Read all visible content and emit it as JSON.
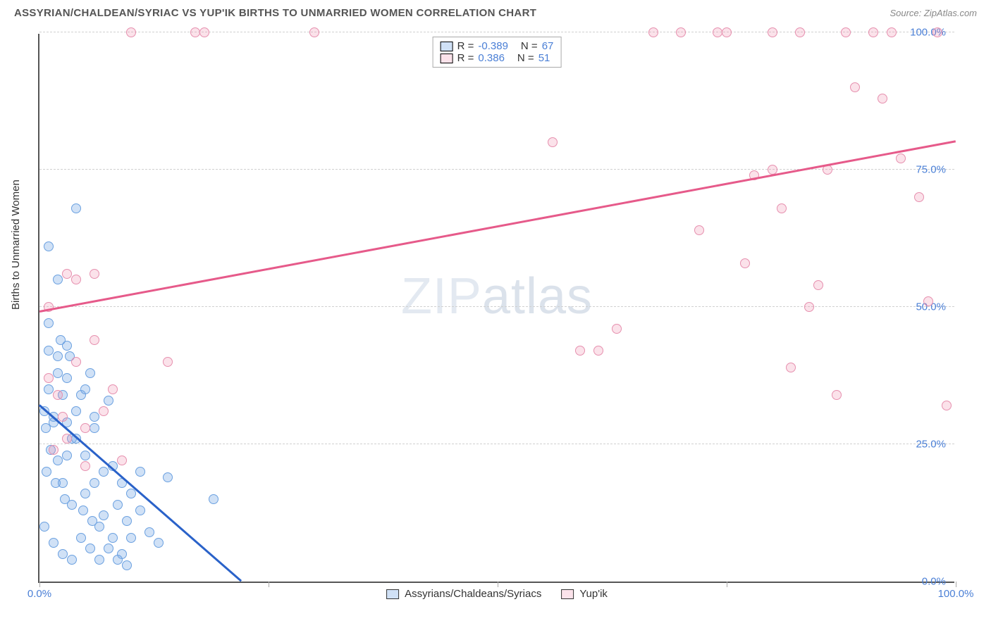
{
  "title": "ASSYRIAN/CHALDEAN/SYRIAC VS YUP'IK BIRTHS TO UNMARRIED WOMEN CORRELATION CHART",
  "source": "Source: ZipAtlas.com",
  "y_axis_label": "Births to Unmarried Women",
  "watermark_bold": "ZIP",
  "watermark_thin": "atlas",
  "chart": {
    "type": "scatter",
    "xlim": [
      0,
      100
    ],
    "ylim": [
      0,
      100
    ],
    "y_ticks": [
      0,
      25,
      50,
      75,
      100
    ],
    "y_tick_labels": [
      "0.0%",
      "25.0%",
      "50.0%",
      "75.0%",
      "100.0%"
    ],
    "x_ticks": [
      0,
      25,
      50,
      75,
      100
    ],
    "x_tick_labels": [
      "0.0%",
      "",
      "",
      "",
      "100.0%"
    ],
    "grid_color": "#d0d0d0",
    "axis_color": "#555555",
    "tick_label_color": "#4a7fd6",
    "marker_radius": 7,
    "series": [
      {
        "name": "Assyrians/Chaldeans/Syriacs",
        "color_fill": "rgba(120,170,230,0.35)",
        "color_stroke": "#6aa0e0",
        "trend_color": "#2a62c9",
        "R": "-0.389",
        "N": "67",
        "trend": {
          "x1": 0,
          "y1": 32,
          "x2": 22,
          "y2": 0
        },
        "points": [
          [
            0.5,
            31
          ],
          [
            0.7,
            28
          ],
          [
            1,
            35
          ],
          [
            1.2,
            24
          ],
          [
            1.5,
            30
          ],
          [
            2,
            41
          ],
          [
            2.5,
            34
          ],
          [
            3,
            37
          ],
          [
            3.5,
            26
          ],
          [
            1,
            47
          ],
          [
            1.5,
            29
          ],
          [
            2,
            22
          ],
          [
            2.5,
            18
          ],
          [
            3,
            23
          ],
          [
            3.5,
            14
          ],
          [
            4,
            31
          ],
          [
            4.5,
            34
          ],
          [
            5,
            16
          ],
          [
            5.5,
            38
          ],
          [
            6,
            18
          ],
          [
            6.5,
            10
          ],
          [
            7,
            20
          ],
          [
            7.5,
            33
          ],
          [
            8,
            8
          ],
          [
            8.5,
            14
          ],
          [
            9,
            18
          ],
          [
            9.5,
            11
          ],
          [
            10,
            16
          ],
          [
            11,
            20
          ],
          [
            12,
            9
          ],
          [
            13,
            7
          ],
          [
            14,
            19
          ],
          [
            4,
            68
          ],
          [
            1,
            61
          ],
          [
            2,
            55
          ],
          [
            3,
            43
          ],
          [
            1,
            42
          ],
          [
            2,
            38
          ],
          [
            3,
            29
          ],
          [
            4,
            26
          ],
          [
            5,
            23
          ],
          [
            6,
            28
          ],
          [
            7,
            12
          ],
          [
            8,
            21
          ],
          [
            9,
            5
          ],
          [
            10,
            8
          ],
          [
            11,
            13
          ],
          [
            2.3,
            44
          ],
          [
            3.3,
            41
          ],
          [
            5,
            35
          ],
          [
            6,
            30
          ],
          [
            0.8,
            20
          ],
          [
            1.8,
            18
          ],
          [
            2.8,
            15
          ],
          [
            19,
            15
          ],
          [
            4.8,
            13
          ],
          [
            5.8,
            11
          ],
          [
            0.5,
            10
          ],
          [
            1.5,
            7
          ],
          [
            2.5,
            5
          ],
          [
            3.5,
            4
          ],
          [
            4.5,
            8
          ],
          [
            5.5,
            6
          ],
          [
            6.5,
            4
          ],
          [
            7.5,
            6
          ],
          [
            8.5,
            4
          ],
          [
            9.5,
            3
          ]
        ]
      },
      {
        "name": "Yup'ik",
        "color_fill": "rgba(240,140,170,0.25)",
        "color_stroke": "#e68fae",
        "trend_color": "#e65a8a",
        "R": "0.386",
        "N": "51",
        "trend": {
          "x1": 0,
          "y1": 49,
          "x2": 100,
          "y2": 80
        },
        "points": [
          [
            1,
            37
          ],
          [
            2,
            34
          ],
          [
            3,
            56
          ],
          [
            4,
            40
          ],
          [
            5,
            28
          ],
          [
            6,
            56
          ],
          [
            1.5,
            24
          ],
          [
            2.5,
            30
          ],
          [
            7,
            31
          ],
          [
            8,
            35
          ],
          [
            9,
            22
          ],
          [
            17,
            100
          ],
          [
            18,
            100
          ],
          [
            30,
            100
          ],
          [
            10,
            100
          ],
          [
            59,
            42
          ],
          [
            61,
            42
          ],
          [
            56,
            80
          ],
          [
            63,
            46
          ],
          [
            67,
            100
          ],
          [
            70,
            100
          ],
          [
            72,
            64
          ],
          [
            74,
            100
          ],
          [
            75,
            100
          ],
          [
            77,
            58
          ],
          [
            78,
            74
          ],
          [
            80,
            75
          ],
          [
            80,
            100
          ],
          [
            81,
            68
          ],
          [
            82,
            39
          ],
          [
            83,
            100
          ],
          [
            84,
            50
          ],
          [
            85,
            54
          ],
          [
            86,
            75
          ],
          [
            87,
            34
          ],
          [
            88,
            100
          ],
          [
            89,
            90
          ],
          [
            91,
            100
          ],
          [
            92,
            88
          ],
          [
            93,
            100
          ],
          [
            94,
            77
          ],
          [
            96,
            70
          ],
          [
            97,
            51
          ],
          [
            98,
            100
          ],
          [
            99,
            32
          ],
          [
            4,
            55
          ],
          [
            6,
            44
          ],
          [
            14,
            40
          ],
          [
            1,
            50
          ],
          [
            3,
            26
          ],
          [
            5,
            21
          ]
        ]
      }
    ]
  },
  "legend_bottom": [
    {
      "label": "Assyrians/Chaldeans/Syriacs",
      "swatch": "blue"
    },
    {
      "label": "Yup'ik",
      "swatch": "pink"
    }
  ]
}
